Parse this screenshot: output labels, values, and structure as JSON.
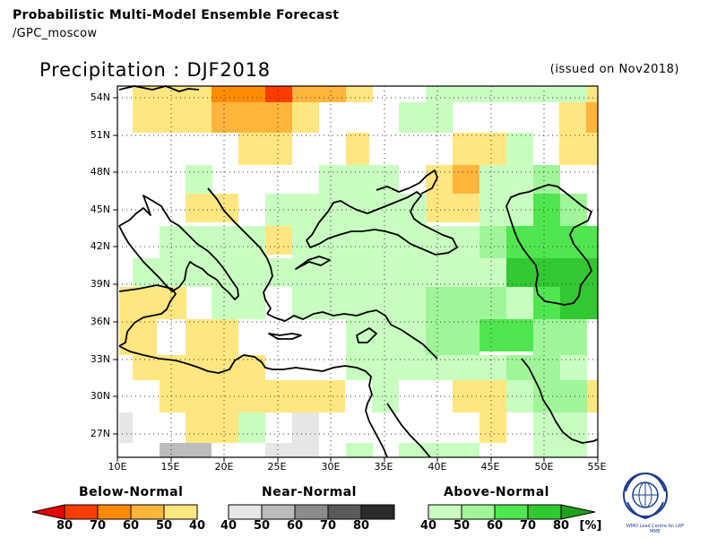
{
  "header": {
    "title": "Probabilistic Multi-Model Ensemble Forecast",
    "subtitle": "/GPC_moscow"
  },
  "map": {
    "title": "Precipitation : DJF2018",
    "issued": "(issued on Nov2018)",
    "lon_range": [
      10,
      55
    ],
    "lat_range": [
      25,
      55
    ],
    "lat_labels": [
      "54N",
      "51N",
      "48N",
      "45N",
      "42N",
      "39N",
      "36N",
      "33N",
      "30N",
      "27N"
    ],
    "lon_labels": [
      "10E",
      "15E",
      "20E",
      "25E",
      "30E",
      "35E",
      "40E",
      "45E",
      "50E",
      "55E"
    ],
    "grid": "dotted"
  },
  "legend": {
    "below": {
      "title": "Below-Normal",
      "labels": [
        "80",
        "70",
        "60",
        "50",
        "40"
      ],
      "colors": [
        "#e60000",
        "#ff3b00",
        "#ff8c00",
        "#ffb43c",
        "#ffe680"
      ]
    },
    "near": {
      "title": "Near-Normal",
      "labels": [
        "40",
        "50",
        "60",
        "70",
        "80"
      ],
      "colors": [
        "#e6e6e6",
        "#bcbcbc",
        "#8c8c8c",
        "#5a5a5a",
        "#2b2b2b"
      ]
    },
    "above": {
      "title": "Above-Normal",
      "labels": [
        "40",
        "50",
        "60",
        "70",
        "80"
      ],
      "colors": [
        "#c8ffc0",
        "#a0f598",
        "#50e650",
        "#32c832",
        "#1ea01e"
      ],
      "unit": "[%]"
    }
  },
  "logo": {
    "caption": "WMO Lead Centre for LRF MME",
    "icon": "wmo-emblem-icon"
  }
}
